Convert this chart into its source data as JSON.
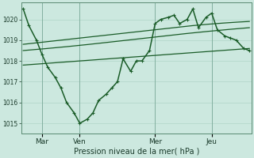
{
  "background_color": "#cce8df",
  "grid_color": "#b0d4c8",
  "line_color": "#1a5c28",
  "xlabel": "Pression niveau de la mer( hPa )",
  "ylim": [
    1014.5,
    1020.8
  ],
  "yticks": [
    1015,
    1016,
    1017,
    1018,
    1019,
    1020
  ],
  "xtick_labels": [
    "Mar",
    "Ven",
    "Mer",
    "Jeu"
  ],
  "xtick_positions": [
    1.0,
    3.0,
    7.0,
    10.0
  ],
  "xlim": [
    -0.1,
    12.1
  ],
  "total_points": 13,
  "line_main": {
    "x": [
      0,
      0.3,
      0.7,
      1.0,
      1.3,
      1.7,
      2.0,
      2.3,
      2.7,
      3.0,
      3.4,
      3.7,
      4.0,
      4.4,
      4.7,
      5.0,
      5.3,
      5.7,
      6.0,
      6.3,
      6.7,
      7.0,
      7.3,
      7.7,
      8.0,
      8.3,
      8.7,
      9.0,
      9.3,
      9.7,
      10.0,
      10.3,
      10.7,
      11.0,
      11.3,
      11.7,
      12.0
    ],
    "y": [
      1020.5,
      1019.7,
      1019.0,
      1018.3,
      1017.7,
      1017.2,
      1016.7,
      1016.0,
      1015.5,
      1015.0,
      1015.2,
      1015.5,
      1016.1,
      1016.4,
      1016.7,
      1017.0,
      1018.1,
      1017.5,
      1018.0,
      1018.0,
      1018.5,
      1019.8,
      1020.0,
      1020.1,
      1020.2,
      1019.8,
      1020.0,
      1020.5,
      1019.6,
      1020.1,
      1020.3,
      1019.5,
      1019.2,
      1019.1,
      1019.0,
      1018.6,
      1018.5
    ],
    "linewidth": 1.1,
    "markersize": 2.2
  },
  "line_smooth_top1": {
    "x": [
      0,
      3,
      6,
      9,
      12
    ],
    "y": [
      1018.8,
      1019.1,
      1019.4,
      1019.7,
      1019.9
    ],
    "linewidth": 0.9
  },
  "line_smooth_top2": {
    "x": [
      0,
      3,
      6,
      9,
      12
    ],
    "y": [
      1018.5,
      1018.75,
      1019.05,
      1019.35,
      1019.6
    ],
    "linewidth": 0.9
  },
  "line_smooth_bottom": {
    "x": [
      0,
      3,
      6,
      9,
      12
    ],
    "y": [
      1017.8,
      1018.0,
      1018.2,
      1018.4,
      1018.6
    ],
    "linewidth": 0.9
  }
}
